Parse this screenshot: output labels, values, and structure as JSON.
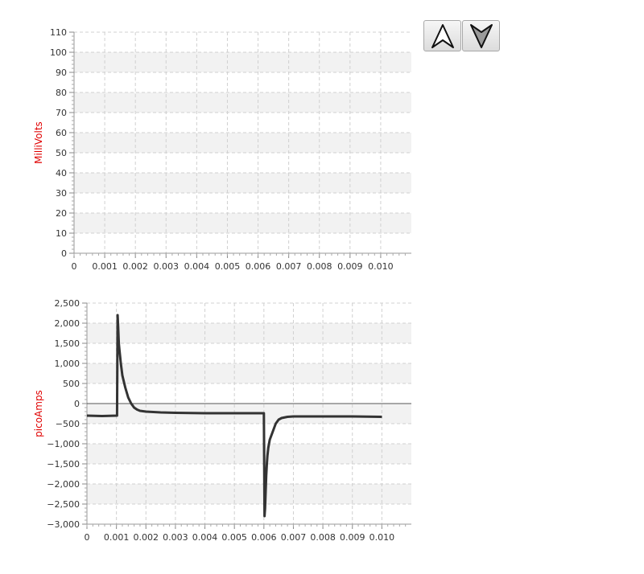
{
  "controls": {
    "up_icon": "up-arrow-icon",
    "down_icon": "down-arrow-icon"
  },
  "colors": {
    "axis_title": "#e00000",
    "trace": "#333333",
    "band": "#f2f2f2",
    "grid": "#d0d0d0"
  },
  "chart_data": [
    {
      "type": "line",
      "ylabel": "MilliVolts",
      "xlim": [
        0,
        0.011
      ],
      "ylim": [
        0,
        110
      ],
      "xticks": [
        "0",
        "0.001",
        "0.002",
        "0.003",
        "0.004",
        "0.005",
        "0.006",
        "0.007",
        "0.008",
        "0.009",
        "0.010"
      ],
      "yticks": [
        "0",
        "10",
        "20",
        "30",
        "40",
        "50",
        "60",
        "70",
        "80",
        "90",
        "100",
        "110"
      ],
      "grid": true,
      "series": []
    },
    {
      "type": "line",
      "ylabel": "picoAmps",
      "xlim": [
        0,
        0.011
      ],
      "ylim": [
        -3000,
        2500
      ],
      "xticks": [
        "0",
        "0.001",
        "0.002",
        "0.003",
        "0.004",
        "0.005",
        "0.006",
        "0.007",
        "0.008",
        "0.009",
        "0.010"
      ],
      "yticks": [
        "−3,000",
        "−2,500",
        "−2,000",
        "−1,500",
        "−1,000",
        "−500",
        "0",
        "500",
        "1,000",
        "1,500",
        "2,000",
        "2,500"
      ],
      "grid": true,
      "zero_line": true,
      "series": [
        {
          "x": [
            0,
            0.0005,
            0.00102,
            0.00104,
            0.00106,
            0.00108,
            0.0011,
            0.00115,
            0.0012,
            0.0013,
            0.0014,
            0.0015,
            0.0016,
            0.0017,
            0.0018,
            0.002,
            0.0025,
            0.003,
            0.004,
            0.005,
            0.006,
            0.00602,
            0.00604,
            0.00606,
            0.00608,
            0.0061,
            0.00612,
            0.00615,
            0.0062,
            0.0063,
            0.0064,
            0.0065,
            0.0066,
            0.0068,
            0.007,
            0.008,
            0.009,
            0.01
          ],
          "y": [
            -300,
            -310,
            -300,
            2200,
            1900,
            1500,
            1350,
            1000,
            700,
            400,
            150,
            0,
            -100,
            -150,
            -180,
            -200,
            -220,
            -230,
            -240,
            -240,
            -240,
            -2800,
            -2600,
            -2200,
            -1800,
            -1500,
            -1300,
            -1100,
            -900,
            -700,
            -500,
            -400,
            -360,
            -330,
            -320,
            -320,
            -320,
            -330
          ]
        }
      ]
    }
  ]
}
